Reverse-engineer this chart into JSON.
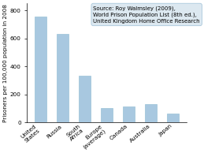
{
  "categories": [
    "United\nStates",
    "Russia",
    "South\nAfrica",
    "Europe\n(average)",
    "Canada",
    "Australia",
    "Japan"
  ],
  "values": [
    756,
    629,
    336,
    105,
    116,
    130,
    63
  ],
  "bar_color": "#a8c8e0",
  "ylabel": "Prisoners per 100,000 population in 2008",
  "ylim": [
    0,
    850
  ],
  "yticks": [
    0,
    200,
    400,
    600,
    800
  ],
  "annotation": "Source: Roy Walmsley (2009),\nWorld Prison Population List (8th ed.),\nUnited Kingdom Home Office Research",
  "annotation_fontsize": 5.0,
  "annotation_box_color": "#dce8f0",
  "bar_edgecolor": "#8ab8d0",
  "ylabel_fontsize": 5.2,
  "tick_fontsize": 5.2,
  "xtick_rotation": 40,
  "bar_width": 0.55
}
